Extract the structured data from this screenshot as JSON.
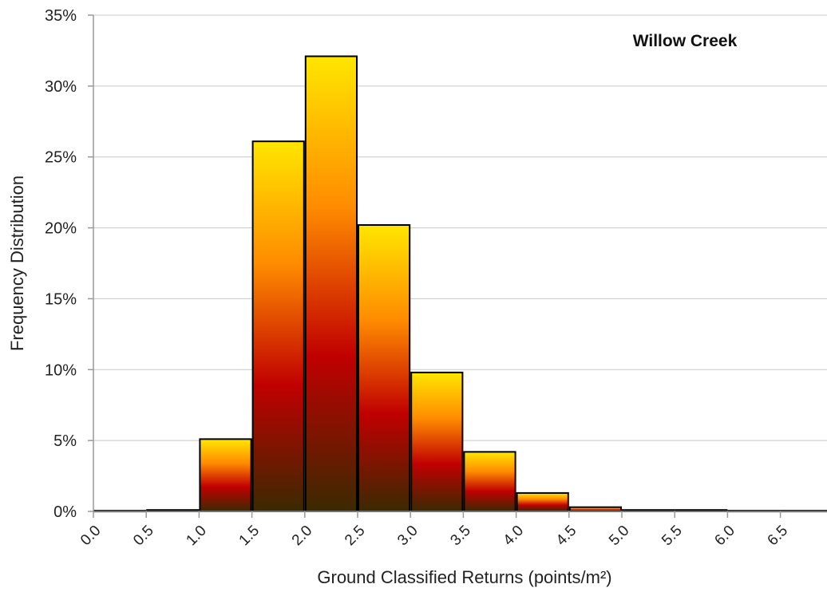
{
  "chart_data": {
    "type": "bar",
    "title": "Willow Creek",
    "xlabel": "Ground Classified Returns (points/m²)",
    "ylabel": "Frequency Distribution",
    "categories": [
      "0.0",
      "0.5",
      "1.0",
      "1.5",
      "2.0",
      "2.5",
      "3.0",
      "3.5",
      "4.0",
      "4.5",
      "5.0",
      "5.5",
      "6.0",
      "6.5"
    ],
    "values": [
      0.05,
      0.1,
      5.1,
      26.1,
      32.1,
      20.2,
      9.8,
      4.2,
      1.3,
      0.3,
      0.1,
      0.1,
      0.05,
      0.05
    ],
    "ylim": [
      0,
      35
    ],
    "yticks": [
      0,
      5,
      10,
      15,
      20,
      25,
      30,
      35
    ],
    "ytick_labels": [
      "0%",
      "5%",
      "10%",
      "15%",
      "20%",
      "25%",
      "30%",
      "35%"
    ],
    "grid": "horizontal",
    "colors": {
      "bar_top": "#ffe600",
      "bar_mid_orange": "#ff8c00",
      "bar_mid_red": "#c00000",
      "bar_bottom": "#3a2a00",
      "bar_outline": "#000000",
      "gridline": "#c8c8c8",
      "axis": "#999999"
    }
  }
}
